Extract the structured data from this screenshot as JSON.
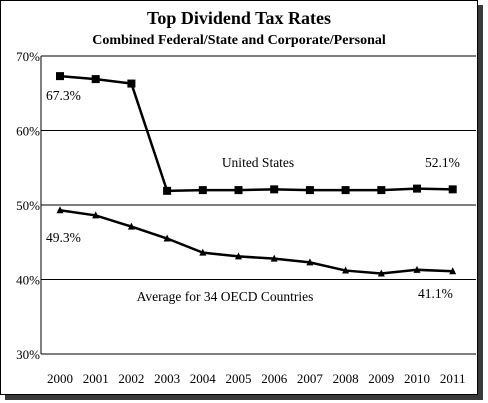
{
  "chart_data": {
    "type": "line",
    "title": "Top Dividend Tax Rates",
    "subtitle": "Combined Federal/State and Corporate/Personal",
    "categories": [
      "2000",
      "2001",
      "2002",
      "2003",
      "2004",
      "2005",
      "2006",
      "2007",
      "2008",
      "2009",
      "2010",
      "2011"
    ],
    "ylim": [
      30,
      70
    ],
    "yticks": [
      "30%",
      "40%",
      "50%",
      "60%",
      "70%"
    ],
    "grid": true,
    "series": [
      {
        "name": "United States",
        "marker": "square",
        "values": [
          67.3,
          66.9,
          66.3,
          51.9,
          52.0,
          52.0,
          52.1,
          52.0,
          52.0,
          52.0,
          52.2,
          52.1
        ]
      },
      {
        "name": "Average for 34 OECD Countries",
        "marker": "triangle",
        "values": [
          49.3,
          48.6,
          47.1,
          45.5,
          43.6,
          43.1,
          42.8,
          42.3,
          41.2,
          40.8,
          41.3,
          41.1
        ]
      }
    ],
    "annotations": [
      "67.3%",
      "52.1%",
      "49.3%",
      "41.1%"
    ],
    "color": "#000000"
  }
}
